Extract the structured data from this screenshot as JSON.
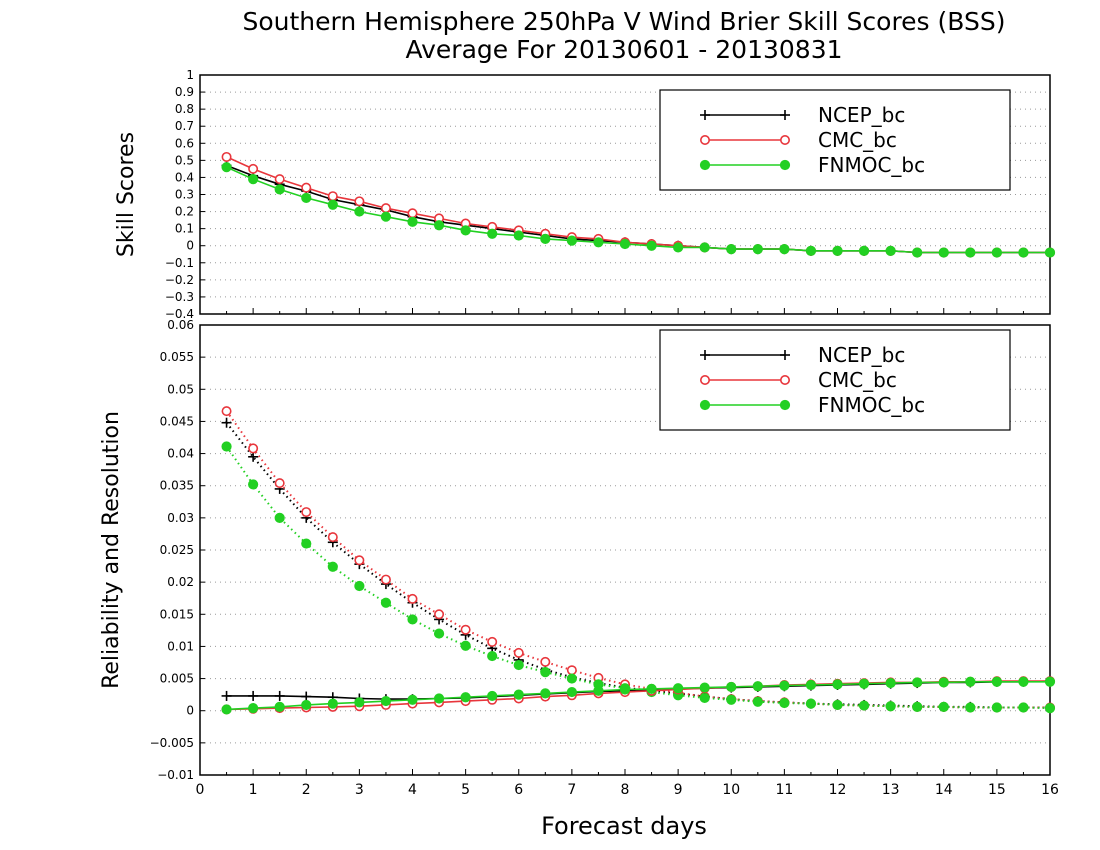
{
  "title_line1": "Southern Hemisphere 250hPa V Wind Brier Skill Scores (BSS)",
  "title_line2": "Average For 20130601 - 20130831",
  "xlabel": "Forecast days",
  "colors": {
    "NCEP_bc": "#000000",
    "CMC_bc": "#e8363c",
    "FNMOC_bc": "#22d022"
  },
  "chart_data": [
    {
      "type": "line",
      "ylabel": "Skill Scores",
      "xlim": [
        0,
        16
      ],
      "ylim": [
        -0.4,
        1
      ],
      "x_ticks": [
        0,
        1,
        2,
        3,
        4,
        5,
        6,
        7,
        8,
        9,
        10,
        11,
        12,
        13,
        14,
        15,
        16
      ],
      "y_ticks": [
        "−0.4",
        "−0.3",
        "−0.2",
        "−0.1",
        "0",
        "0.1",
        "0.2",
        "0.3",
        "0.4",
        "0.5",
        "0.6",
        "0.7",
        "0.8",
        "0.9",
        "1"
      ],
      "y_tick_values": [
        -0.4,
        -0.3,
        -0.2,
        -0.1,
        0,
        0.1,
        0.2,
        0.3,
        0.4,
        0.5,
        0.6,
        0.7,
        0.8,
        0.9,
        1
      ],
      "grid": "dotted horizontal",
      "legend": "top-right",
      "x": [
        0.5,
        1,
        1.5,
        2,
        2.5,
        3,
        3.5,
        4,
        4.5,
        5,
        5.5,
        6,
        6.5,
        7,
        7.5,
        8,
        8.5,
        9,
        9.5,
        10,
        10.5,
        11,
        11.5,
        12,
        12.5,
        13,
        13.5,
        14,
        14.5,
        15,
        15.5,
        16
      ],
      "series": [
        {
          "name": "NCEP_bc",
          "marker": "plus",
          "style": "solid",
          "values": [
            0.47,
            0.41,
            0.36,
            0.32,
            0.27,
            0.24,
            0.21,
            0.17,
            0.14,
            0.12,
            0.1,
            0.08,
            0.06,
            0.04,
            0.03,
            0.02,
            0.01,
            0.0,
            -0.01,
            -0.02,
            -0.02,
            -0.02,
            -0.03,
            -0.03,
            -0.03,
            -0.03,
            -0.04,
            -0.04,
            -0.04,
            -0.04,
            -0.04,
            -0.04
          ]
        },
        {
          "name": "CMC_bc",
          "marker": "open-circle",
          "style": "solid",
          "values": [
            0.52,
            0.45,
            0.39,
            0.34,
            0.29,
            0.26,
            0.22,
            0.19,
            0.16,
            0.13,
            0.11,
            0.09,
            0.07,
            0.05,
            0.04,
            0.02,
            0.01,
            0.0,
            -0.01,
            -0.02,
            -0.02,
            -0.02,
            -0.03,
            -0.03,
            -0.03,
            -0.03,
            -0.04,
            -0.04,
            -0.04,
            -0.04,
            -0.04,
            -0.04
          ]
        },
        {
          "name": "FNMOC_bc",
          "marker": "filled-circle",
          "style": "solid",
          "values": [
            0.46,
            0.39,
            0.33,
            0.28,
            0.24,
            0.2,
            0.17,
            0.14,
            0.12,
            0.09,
            0.07,
            0.06,
            0.04,
            0.03,
            0.02,
            0.01,
            0.0,
            -0.01,
            -0.01,
            -0.02,
            -0.02,
            -0.02,
            -0.03,
            -0.03,
            -0.03,
            -0.03,
            -0.04,
            -0.04,
            -0.04,
            -0.04,
            -0.04,
            -0.04
          ]
        }
      ]
    },
    {
      "type": "line",
      "ylabel": "Reliability and Resolution",
      "xlim": [
        0,
        16
      ],
      "ylim": [
        -0.01,
        0.06
      ],
      "x_ticks": [
        0,
        1,
        2,
        3,
        4,
        5,
        6,
        7,
        8,
        9,
        10,
        11,
        12,
        13,
        14,
        15,
        16
      ],
      "y_ticks": [
        "−0.01",
        "−0.005",
        "0",
        "0.005",
        "0.01",
        "0.015",
        "0.02",
        "0.025",
        "0.03",
        "0.035",
        "0.04",
        "0.045",
        "0.05",
        "0.055",
        "0.06"
      ],
      "y_tick_values": [
        -0.01,
        -0.005,
        0,
        0.005,
        0.01,
        0.015,
        0.02,
        0.025,
        0.03,
        0.035,
        0.04,
        0.045,
        0.05,
        0.055,
        0.06
      ],
      "grid": "dotted horizontal",
      "legend": "top-right",
      "x": [
        0.5,
        1,
        1.5,
        2,
        2.5,
        3,
        3.5,
        4,
        4.5,
        5,
        5.5,
        6,
        6.5,
        7,
        7.5,
        8,
        8.5,
        9,
        9.5,
        10,
        10.5,
        11,
        11.5,
        12,
        12.5,
        13,
        13.5,
        14,
        14.5,
        15,
        15.5,
        16
      ],
      "series": [
        {
          "name": "NCEP_bc",
          "marker": "plus",
          "style": "dotted",
          "quantity": "resolution",
          "values": [
            0.0448,
            0.0395,
            0.0345,
            0.03,
            0.0262,
            0.0228,
            0.0197,
            0.0168,
            0.0142,
            0.0118,
            0.0097,
            0.0079,
            0.0064,
            0.0052,
            0.0043,
            0.0036,
            0.0031,
            0.0027,
            0.0022,
            0.0018,
            0.0015,
            0.0013,
            0.0011,
            0.001,
            0.0009,
            0.0008,
            0.0007,
            0.0006,
            0.0006,
            0.0005,
            0.0005,
            0.0005
          ]
        },
        {
          "name": "CMC_bc",
          "marker": "open-circle",
          "style": "dotted",
          "quantity": "resolution",
          "values": [
            0.0466,
            0.0408,
            0.0354,
            0.0309,
            0.027,
            0.0234,
            0.0204,
            0.0174,
            0.015,
            0.0126,
            0.0107,
            0.009,
            0.0076,
            0.0063,
            0.0051,
            0.0041,
            0.0034,
            0.0028,
            0.0022,
            0.0018,
            0.0015,
            0.0013,
            0.0011,
            0.0009,
            0.0008,
            0.0007,
            0.0006,
            0.0006,
            0.0005,
            0.0005,
            0.0005,
            0.0005
          ]
        },
        {
          "name": "FNMOC_bc",
          "marker": "filled-circle",
          "style": "dotted",
          "quantity": "resolution",
          "values": [
            0.0411,
            0.0352,
            0.03,
            0.026,
            0.0224,
            0.0194,
            0.0168,
            0.0142,
            0.012,
            0.0101,
            0.0085,
            0.0071,
            0.006,
            0.005,
            0.0041,
            0.0035,
            0.0029,
            0.0024,
            0.002,
            0.0017,
            0.0014,
            0.0012,
            0.0011,
            0.0009,
            0.0008,
            0.0007,
            0.0006,
            0.0006,
            0.0005,
            0.0005,
            0.0005,
            0.0004
          ]
        },
        {
          "name": "NCEP_bc",
          "marker": "plus",
          "style": "solid",
          "quantity": "reliability",
          "values": [
            0.0023,
            0.0023,
            0.0023,
            0.0022,
            0.0021,
            0.0019,
            0.0018,
            0.0018,
            0.0019,
            0.002,
            0.0022,
            0.0024,
            0.0026,
            0.0028,
            0.003,
            0.0031,
            0.0033,
            0.0034,
            0.0035,
            0.0036,
            0.0037,
            0.0038,
            0.0039,
            0.004,
            0.0041,
            0.0042,
            0.0043,
            0.0044,
            0.0044,
            0.0045,
            0.0045,
            0.0046
          ]
        },
        {
          "name": "CMC_bc",
          "marker": "open-circle",
          "style": "solid",
          "quantity": "reliability",
          "values": [
            0.0002,
            0.0003,
            0.0004,
            0.0005,
            0.0006,
            0.0007,
            0.0009,
            0.0011,
            0.0013,
            0.0015,
            0.0017,
            0.0019,
            0.0022,
            0.0024,
            0.0027,
            0.0029,
            0.0031,
            0.0033,
            0.0035,
            0.0037,
            0.0038,
            0.004,
            0.0041,
            0.0042,
            0.0043,
            0.0044,
            0.0044,
            0.0045,
            0.0045,
            0.0046,
            0.0046,
            0.0046
          ]
        },
        {
          "name": "FNMOC_bc",
          "marker": "filled-circle",
          "style": "solid",
          "quantity": "reliability",
          "values": [
            0.0002,
            0.0004,
            0.0006,
            0.0009,
            0.0011,
            0.0013,
            0.0015,
            0.0017,
            0.0019,
            0.0021,
            0.0023,
            0.0025,
            0.0027,
            0.0029,
            0.0031,
            0.0033,
            0.0034,
            0.0035,
            0.0036,
            0.0037,
            0.0038,
            0.0039,
            0.004,
            0.0041,
            0.0042,
            0.0043,
            0.0044,
            0.0044,
            0.0045,
            0.0045,
            0.0045,
            0.0045
          ]
        }
      ]
    }
  ]
}
